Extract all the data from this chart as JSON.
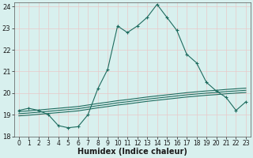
{
  "xlabel": "Humidex (Indice chaleur)",
  "xlim": [
    -0.5,
    23.5
  ],
  "ylim": [
    18,
    24.2
  ],
  "yticks": [
    18,
    19,
    20,
    21,
    22,
    23,
    24
  ],
  "xticks": [
    0,
    1,
    2,
    3,
    4,
    5,
    6,
    7,
    8,
    9,
    10,
    11,
    12,
    13,
    14,
    15,
    16,
    17,
    18,
    19,
    20,
    21,
    22,
    23
  ],
  "bg_color": "#cce8e4",
  "plot_bg": "#d8f0ee",
  "grid_color": "#e8c8c8",
  "line_color": "#1e6b5e",
  "line1_x": [
    0,
    1,
    2,
    3,
    4,
    5,
    6,
    7,
    8,
    9,
    10,
    11,
    12,
    13,
    14,
    15,
    16,
    17,
    18,
    19,
    20,
    21,
    22,
    23
  ],
  "line1_y": [
    19.2,
    19.3,
    19.2,
    19.0,
    18.5,
    18.4,
    18.45,
    19.0,
    20.2,
    21.1,
    23.1,
    22.8,
    23.1,
    23.5,
    24.1,
    23.5,
    22.9,
    21.8,
    21.4,
    20.5,
    20.1,
    19.8,
    19.2,
    19.6
  ],
  "line2_x": [
    0,
    1,
    2,
    3,
    4,
    5,
    6,
    7,
    8,
    9,
    10,
    11,
    12,
    13,
    14,
    15,
    16,
    17,
    18,
    19,
    20,
    21,
    22,
    23
  ],
  "line2_y": [
    19.15,
    19.18,
    19.22,
    19.26,
    19.3,
    19.34,
    19.38,
    19.45,
    19.52,
    19.58,
    19.65,
    19.7,
    19.76,
    19.82,
    19.87,
    19.92,
    19.97,
    20.02,
    20.06,
    20.1,
    20.13,
    20.17,
    20.2,
    20.23
  ],
  "line3_x": [
    0,
    1,
    2,
    3,
    4,
    5,
    6,
    7,
    8,
    9,
    10,
    11,
    12,
    13,
    14,
    15,
    16,
    17,
    18,
    19,
    20,
    21,
    22,
    23
  ],
  "line3_y": [
    19.05,
    19.08,
    19.12,
    19.16,
    19.2,
    19.24,
    19.28,
    19.35,
    19.42,
    19.48,
    19.55,
    19.6,
    19.66,
    19.72,
    19.77,
    19.82,
    19.87,
    19.92,
    19.96,
    20.0,
    20.03,
    20.07,
    20.1,
    20.13
  ],
  "line4_x": [
    0,
    1,
    2,
    3,
    4,
    5,
    6,
    7,
    8,
    9,
    10,
    11,
    12,
    13,
    14,
    15,
    16,
    17,
    18,
    19,
    20,
    21,
    22,
    23
  ],
  "line4_y": [
    18.95,
    18.98,
    19.02,
    19.06,
    19.1,
    19.14,
    19.18,
    19.25,
    19.32,
    19.38,
    19.45,
    19.5,
    19.56,
    19.62,
    19.67,
    19.72,
    19.77,
    19.82,
    19.86,
    19.9,
    19.93,
    19.97,
    20.0,
    20.03
  ]
}
